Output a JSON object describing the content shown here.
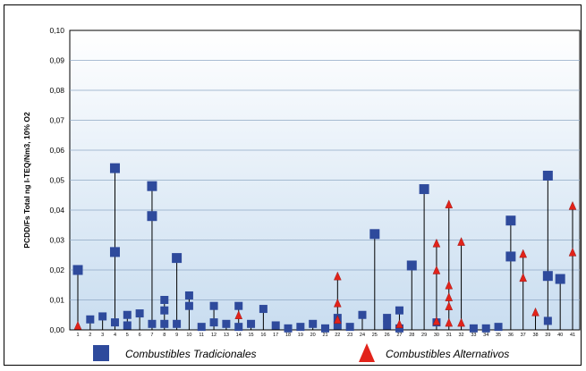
{
  "chart_data": {
    "type": "scatter",
    "ylabel": "PCDD/Fs Total ng I-TEQ/Nm3, 10% O2",
    "ylim": [
      0,
      0.1
    ],
    "yticks": [
      "0,00",
      "0,01",
      "0,02",
      "0,03",
      "0,04",
      "0,05",
      "0,06",
      "0,07",
      "0,08",
      "0,09",
      "0,10"
    ],
    "xlim": [
      1,
      41
    ],
    "categories": [
      "1",
      "2",
      "3",
      "4",
      "5",
      "6",
      "7",
      "8",
      "9",
      "10",
      "11",
      "12",
      "13",
      "14",
      "15",
      "16",
      "17",
      "18",
      "19",
      "20",
      "21",
      "22",
      "23",
      "24",
      "25",
      "26",
      "27",
      "28",
      "29",
      "30",
      "31",
      "32",
      "33",
      "34",
      "35",
      "36",
      "37",
      "38",
      "39",
      "40",
      "41"
    ],
    "grid": true,
    "legend_position": "bottom",
    "colors": {
      "tradicional": "#2E4A9C",
      "alternativo": "#E2231A",
      "plot_top": "#FFFFFF",
      "plot_bottom": "#C9DDF0"
    },
    "series": [
      {
        "name": "Combustibles Tradicionales",
        "marker": "square",
        "points": [
          {
            "x": 1,
            "y": 0.02
          },
          {
            "x": 2,
            "y": 0.0035
          },
          {
            "x": 3,
            "y": 0.0045
          },
          {
            "x": 4,
            "y": 0.054
          },
          {
            "x": 4,
            "y": 0.026
          },
          {
            "x": 4,
            "y": 0.0025
          },
          {
            "x": 5,
            "y": 0.005
          },
          {
            "x": 5,
            "y": 0.0015
          },
          {
            "x": 6,
            "y": 0.0055
          },
          {
            "x": 7,
            "y": 0.048
          },
          {
            "x": 7,
            "y": 0.038
          },
          {
            "x": 7,
            "y": 0.002
          },
          {
            "x": 8,
            "y": 0.01
          },
          {
            "x": 8,
            "y": 0.0065
          },
          {
            "x": 8,
            "y": 0.002
          },
          {
            "x": 9,
            "y": 0.024
          },
          {
            "x": 9,
            "y": 0.002
          },
          {
            "x": 10,
            "y": 0.0115
          },
          {
            "x": 10,
            "y": 0.008
          },
          {
            "x": 11,
            "y": 0.001
          },
          {
            "x": 12,
            "y": 0.008
          },
          {
            "x": 12,
            "y": 0.0025
          },
          {
            "x": 13,
            "y": 0.002
          },
          {
            "x": 14,
            "y": 0.008
          },
          {
            "x": 14,
            "y": 0.001
          },
          {
            "x": 15,
            "y": 0.002
          },
          {
            "x": 16,
            "y": 0.007
          },
          {
            "x": 17,
            "y": 0.0015
          },
          {
            "x": 18,
            "y": 0.0005
          },
          {
            "x": 19,
            "y": 0.001
          },
          {
            "x": 20,
            "y": 0.002
          },
          {
            "x": 21,
            "y": 0.0005
          },
          {
            "x": 22,
            "y": 0.004
          },
          {
            "x": 22,
            "y": 0.0015
          },
          {
            "x": 23,
            "y": 0.001
          },
          {
            "x": 24,
            "y": 0.005
          },
          {
            "x": 25,
            "y": 0.032
          },
          {
            "x": 26,
            "y": 0.004
          },
          {
            "x": 26,
            "y": 0.0015
          },
          {
            "x": 27,
            "y": 0.0065
          },
          {
            "x": 27,
            "y": 0.0005
          },
          {
            "x": 28,
            "y": 0.0215
          },
          {
            "x": 29,
            "y": 0.047
          },
          {
            "x": 30,
            "y": 0.0025
          },
          {
            "x": 33,
            "y": 0.0005
          },
          {
            "x": 34,
            "y": 0.0005
          },
          {
            "x": 35,
            "y": 0.001
          },
          {
            "x": 36,
            "y": 0.0365
          },
          {
            "x": 36,
            "y": 0.0245
          },
          {
            "x": 39,
            "y": 0.0515
          },
          {
            "x": 39,
            "y": 0.018
          },
          {
            "x": 39,
            "y": 0.003
          },
          {
            "x": 40,
            "y": 0.017
          }
        ]
      },
      {
        "name": "Combustibles Alternativos",
        "marker": "triangle",
        "points": [
          {
            "x": 1,
            "y": 0.0015
          },
          {
            "x": 14,
            "y": 0.005
          },
          {
            "x": 22,
            "y": 0.018
          },
          {
            "x": 22,
            "y": 0.009
          },
          {
            "x": 22,
            "y": 0.0035
          },
          {
            "x": 27,
            "y": 0.002
          },
          {
            "x": 30,
            "y": 0.029
          },
          {
            "x": 30,
            "y": 0.02
          },
          {
            "x": 30,
            "y": 0.003
          },
          {
            "x": 31,
            "y": 0.042
          },
          {
            "x": 31,
            "y": 0.015
          },
          {
            "x": 31,
            "y": 0.011
          },
          {
            "x": 31,
            "y": 0.008
          },
          {
            "x": 31,
            "y": 0.0025
          },
          {
            "x": 32,
            "y": 0.0295
          },
          {
            "x": 32,
            "y": 0.0025
          },
          {
            "x": 37,
            "y": 0.0255
          },
          {
            "x": 37,
            "y": 0.0175
          },
          {
            "x": 38,
            "y": 0.006
          },
          {
            "x": 41,
            "y": 0.0415
          },
          {
            "x": 41,
            "y": 0.026
          }
        ]
      }
    ]
  }
}
